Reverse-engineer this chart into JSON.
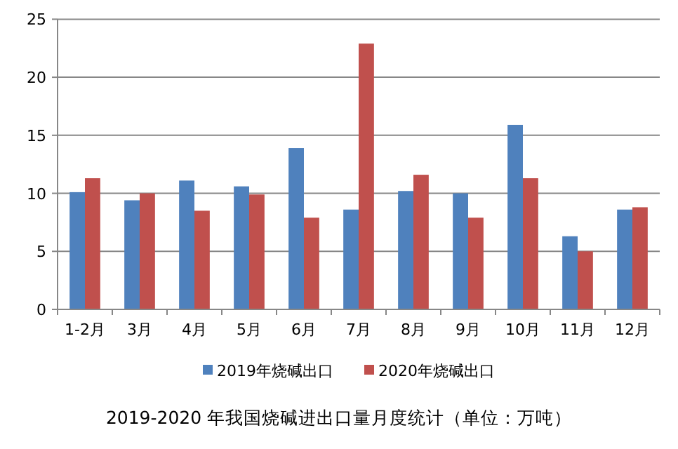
{
  "chart_data": {
    "type": "bar",
    "title": "2019-2020 年我国烧碱进出口量月度统计（单位：万吨）",
    "categories": [
      "1-2月",
      "3月",
      "4月",
      "5月",
      "6月",
      "7月",
      "8月",
      "9月",
      "10月",
      "11月",
      "12月"
    ],
    "series": [
      {
        "name": "2019年烧碱出口",
        "color": "#4f81bd",
        "values": [
          10.1,
          9.4,
          11.1,
          10.6,
          13.9,
          8.6,
          10.2,
          10.0,
          15.9,
          6.3,
          8.6
        ]
      },
      {
        "name": "2020年烧碱出口",
        "color": "#c0504d",
        "values": [
          11.3,
          10.0,
          8.5,
          9.9,
          7.9,
          22.9,
          11.6,
          7.9,
          11.3,
          5.0,
          8.8
        ]
      }
    ],
    "ylim": [
      0,
      25
    ],
    "yticks": [
      0,
      5,
      10,
      15,
      20,
      25
    ],
    "grid": "y",
    "legend": "bottom"
  }
}
